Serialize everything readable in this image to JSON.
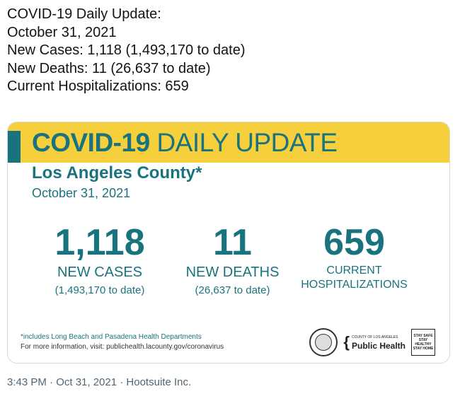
{
  "tweet": {
    "lines": [
      "COVID-19 Daily Update:",
      "October 31, 2021",
      "New Cases: 1,118 (1,493,170 to date)",
      "New Deaths: 11 (26,637 to date)",
      "Current Hospitalizations: 659"
    ]
  },
  "card": {
    "title_bold": "COVID-19",
    "title_rest": "DAILY UPDATE",
    "county": "Los Angeles County*",
    "date": "October 31, 2021",
    "stats": [
      {
        "number": "1,118",
        "label": "NEW CASES",
        "sub": "(1,493,170 to date)"
      },
      {
        "number": "11",
        "label": "NEW DEATHS",
        "sub": "(26,637 to date)"
      },
      {
        "number": "659",
        "label_line1": "CURRENT",
        "label_line2": "HOSPITALIZATIONS"
      }
    ],
    "footnote": "*includes Long Beach and Pasadena Health Departments",
    "more_info": "For more information, visit: publichealth.lacounty.gov/coronavirus",
    "logos": {
      "county_small": "COUNTY OF LOS ANGELES",
      "public_health": "Public Health",
      "stay_safe": [
        "STAY SAFE",
        "STAY HEALTHY",
        "STAY HOME"
      ]
    },
    "colors": {
      "teal": "#19737e",
      "yellow": "#f6cf3c"
    }
  },
  "meta": {
    "timestamp": "3:43 PM · Oct 31, 2021 · Hootsuite Inc."
  }
}
